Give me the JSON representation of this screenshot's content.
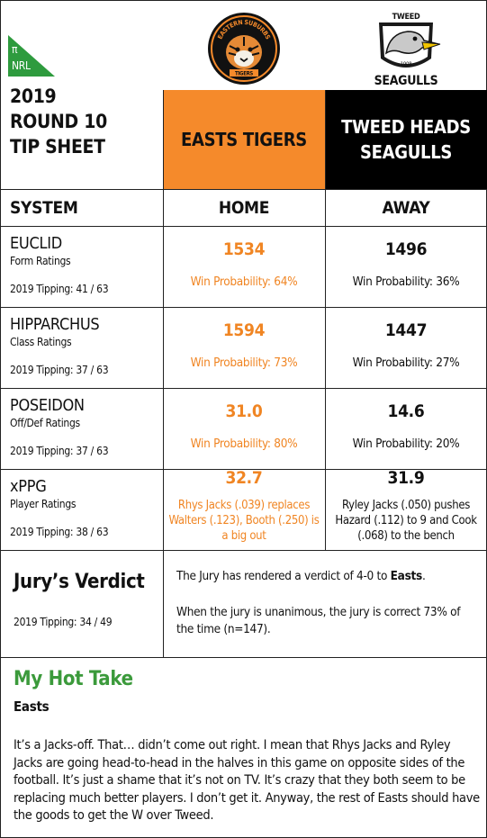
{
  "brand": {
    "pi": "π",
    "label": "NRL",
    "color": "#2e9b3e"
  },
  "header": {
    "title_line1": "2019",
    "title_line2": "ROUND 10",
    "title_line3": "TIP SHEET",
    "home_team_line1": "EASTS TIGERS",
    "away_team_line1": "TWEED HEADS",
    "away_team_line2": "SEAGULLS",
    "home_color": "#f58a2b",
    "away_color": "#000000",
    "home_logo": {
      "top_text": "EASTERN SUBURBS",
      "bottom_text": "TIGERS",
      "icon": "tiger-head-icon"
    },
    "away_logo": {
      "top_text": "TWEED",
      "year": "1908",
      "bottom_text": "SEAGULLS",
      "icon": "seagull-icon"
    }
  },
  "columns": {
    "system": "SYSTEM",
    "home": "HOME",
    "away": "AWAY"
  },
  "systems": [
    {
      "name": "EUCLID",
      "sub": "Form Ratings",
      "tipping": "2019 Tipping: 41 / 63",
      "home_val": "1534",
      "home_prob": "Win Probability: 64%",
      "away_val": "1496",
      "away_prob": "Win Probability: 36%"
    },
    {
      "name": "HIPPARCHUS",
      "sub": "Class Ratings",
      "tipping": "2019 Tipping: 37 / 63",
      "home_val": "1594",
      "home_prob": "Win Probability: 73%",
      "away_val": "1447",
      "away_prob": "Win Probability: 27%"
    },
    {
      "name": "POSEIDON",
      "sub": "Off/Def Ratings",
      "tipping": "2019 Tipping: 37 / 63",
      "home_val": "31.0",
      "home_prob": "Win Probability: 80%",
      "away_val": "14.6",
      "away_prob": "Win Probability: 20%"
    },
    {
      "name": "xPPG",
      "sub": "Player Ratings",
      "tipping": "2019 Tipping: 38 / 63",
      "home_val": "32.7",
      "home_note": "Rhys Jacks (.039) replaces Walters (.123), Booth (.250) is a big out",
      "away_val": "31.9",
      "away_note": "Ryley Jacks (.050) pushes Hazard (.112) to 9 and Cook (.068) to the bench"
    }
  ],
  "jury": {
    "title": "Jury’s Verdict",
    "tipping": "2019 Tipping: 34 / 49",
    "verdict_prefix": "The Jury has rendered a verdict of 4-0 to ",
    "verdict_team": "Easts",
    "verdict_suffix": ".",
    "unanimous": "When the jury is unanimous, the jury is correct 73% of the time (n=147)."
  },
  "hot_take": {
    "title": "My Hot Take",
    "team": "Easts",
    "text": "It’s a Jacks-off. That… didn’t come out right. I mean that Rhys Jacks and Ryley Jacks are going head-to-head in the halves in this game on opposite sides of the football. It’s just a shame that it’s not on TV. It’s crazy that they both seem to be replacing much better players. I don’t get it. Anyway, the rest of Easts should have the goods to get the W over Tweed.",
    "title_color": "#3b9a3b"
  }
}
